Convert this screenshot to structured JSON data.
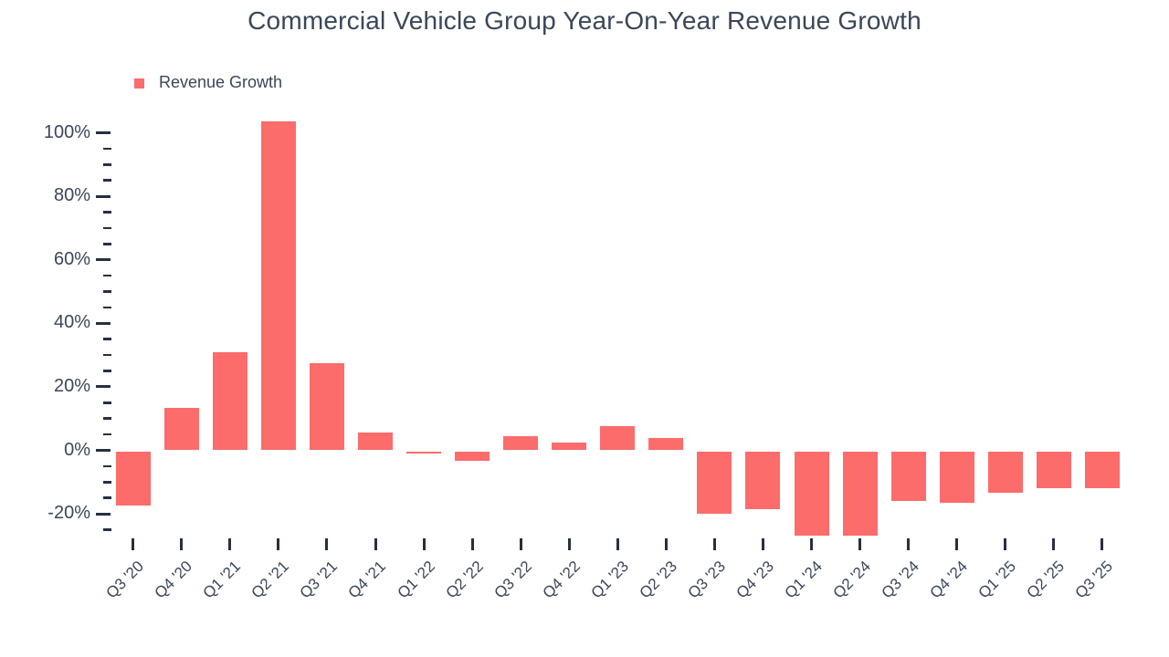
{
  "title": "Commercial Vehicle Group Year-On-Year Revenue Growth",
  "legend": {
    "label": "Revenue Growth",
    "position": "top-left"
  },
  "colors": {
    "bar": "#FB6C6B",
    "text": "#3B4659",
    "tick": "#253041",
    "background": "#FFFFFF"
  },
  "chart_data": {
    "type": "bar",
    "title": "Commercial Vehicle Group Year-On-Year Revenue Growth",
    "unit": "%",
    "categories": [
      "Q3 '20",
      "Q4 '20",
      "Q1 '21",
      "Q2 '21",
      "Q3 '21",
      "Q4 '21",
      "Q1 '22",
      "Q2 '22",
      "Q3 '22",
      "Q4 '22",
      "Q1 '23",
      "Q2 '23",
      "Q3 '23",
      "Q4 '23",
      "Q1 '24",
      "Q2 '24",
      "Q3 '24",
      "Q4 '24",
      "Q1 '25",
      "Q2 '25",
      "Q3 '25"
    ],
    "series": [
      {
        "name": "Revenue Growth",
        "values": [
          -17,
          13.5,
          31,
          103.5,
          27.5,
          5.5,
          -0.5,
          -3,
          4.5,
          2.5,
          7.5,
          4,
          -19.5,
          -18,
          -26.5,
          -26.5,
          -15.5,
          -16,
          -13,
          -11.5,
          -11.5
        ]
      }
    ],
    "xlabel": "",
    "ylabel": "",
    "ylim": [
      -28,
      104
    ],
    "y_axis": {
      "major_ticks": [
        {
          "value": 100,
          "label": "100%"
        },
        {
          "value": 80,
          "label": "80%"
        },
        {
          "value": 60,
          "label": "60%"
        },
        {
          "value": 40,
          "label": "40%"
        },
        {
          "value": 20,
          "label": "20%"
        },
        {
          "value": 0,
          "label": "0%"
        },
        {
          "value": -20,
          "label": "-20%"
        }
      ],
      "minor_step": 5,
      "minor_min": -25,
      "minor_max": 100
    },
    "grid": false,
    "legend_position": "top-left"
  }
}
